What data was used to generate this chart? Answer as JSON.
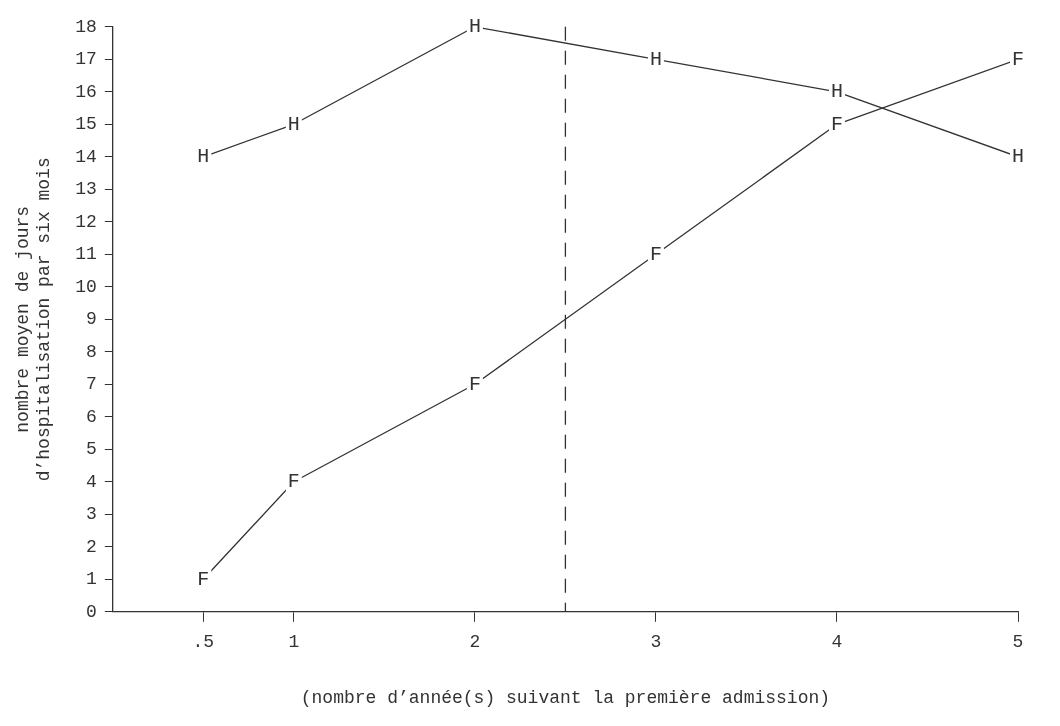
{
  "chart_data": {
    "type": "line",
    "xlabel": "(nombre d’année(s) suivant la première admission)",
    "ylabel": "nombre moyen de jours\nd’hospitalisation par six mois",
    "x": [
      0.5,
      1,
      2,
      3,
      4,
      5
    ],
    "series": [
      {
        "name": "H",
        "color": "#333333",
        "values": [
          14,
          15,
          18,
          17,
          16,
          14
        ]
      },
      {
        "name": "F",
        "color": "#333333",
        "values": [
          1,
          4,
          7,
          11,
          15,
          17
        ]
      }
    ],
    "xlim": [
      0,
      5
    ],
    "xticks": [
      {
        "value": 0.5,
        "label": ".5"
      },
      1,
      2,
      3,
      4,
      5
    ],
    "ylim": [
      0,
      18
    ],
    "yticks": [
      0,
      1,
      2,
      3,
      4,
      5,
      6,
      7,
      8,
      9,
      10,
      11,
      12,
      13,
      14,
      15,
      16,
      17,
      18
    ],
    "ref_lines": [
      {
        "axis": "x",
        "value": 2.5,
        "line_style": "dashed",
        "color": "#333333"
      }
    ],
    "grid": false,
    "legend": false,
    "marker": "square",
    "line_style": "solid"
  }
}
